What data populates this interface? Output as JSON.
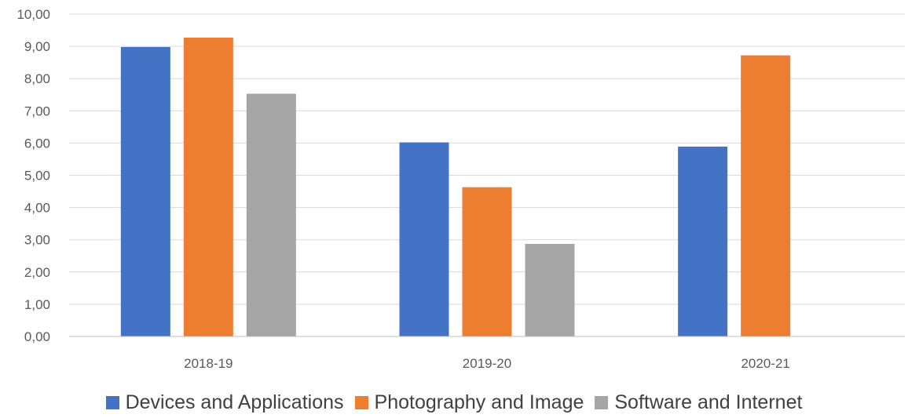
{
  "chart_data": {
    "type": "bar",
    "title": "",
    "xlabel": "",
    "ylabel": "",
    "categories": [
      "2018-19",
      "2019-20",
      "2020-21"
    ],
    "series": [
      {
        "name": "Devices and Applications",
        "color": "#4472c4",
        "values": [
          8.98,
          6.02,
          5.89
        ]
      },
      {
        "name": "Photography and Image",
        "color": "#ed7d31",
        "values": [
          9.27,
          4.63,
          8.72
        ]
      },
      {
        "name": "Software and Internet",
        "color": "#a5a5a5",
        "values": [
          7.53,
          2.87,
          null
        ]
      }
    ],
    "ylim": [
      0,
      10
    ],
    "yticks": [
      "0,00",
      "1,00",
      "2,00",
      "3,00",
      "4,00",
      "5,00",
      "6,00",
      "7,00",
      "8,00",
      "9,00",
      "10,00"
    ],
    "grid": true,
    "legend_position": "bottom"
  }
}
